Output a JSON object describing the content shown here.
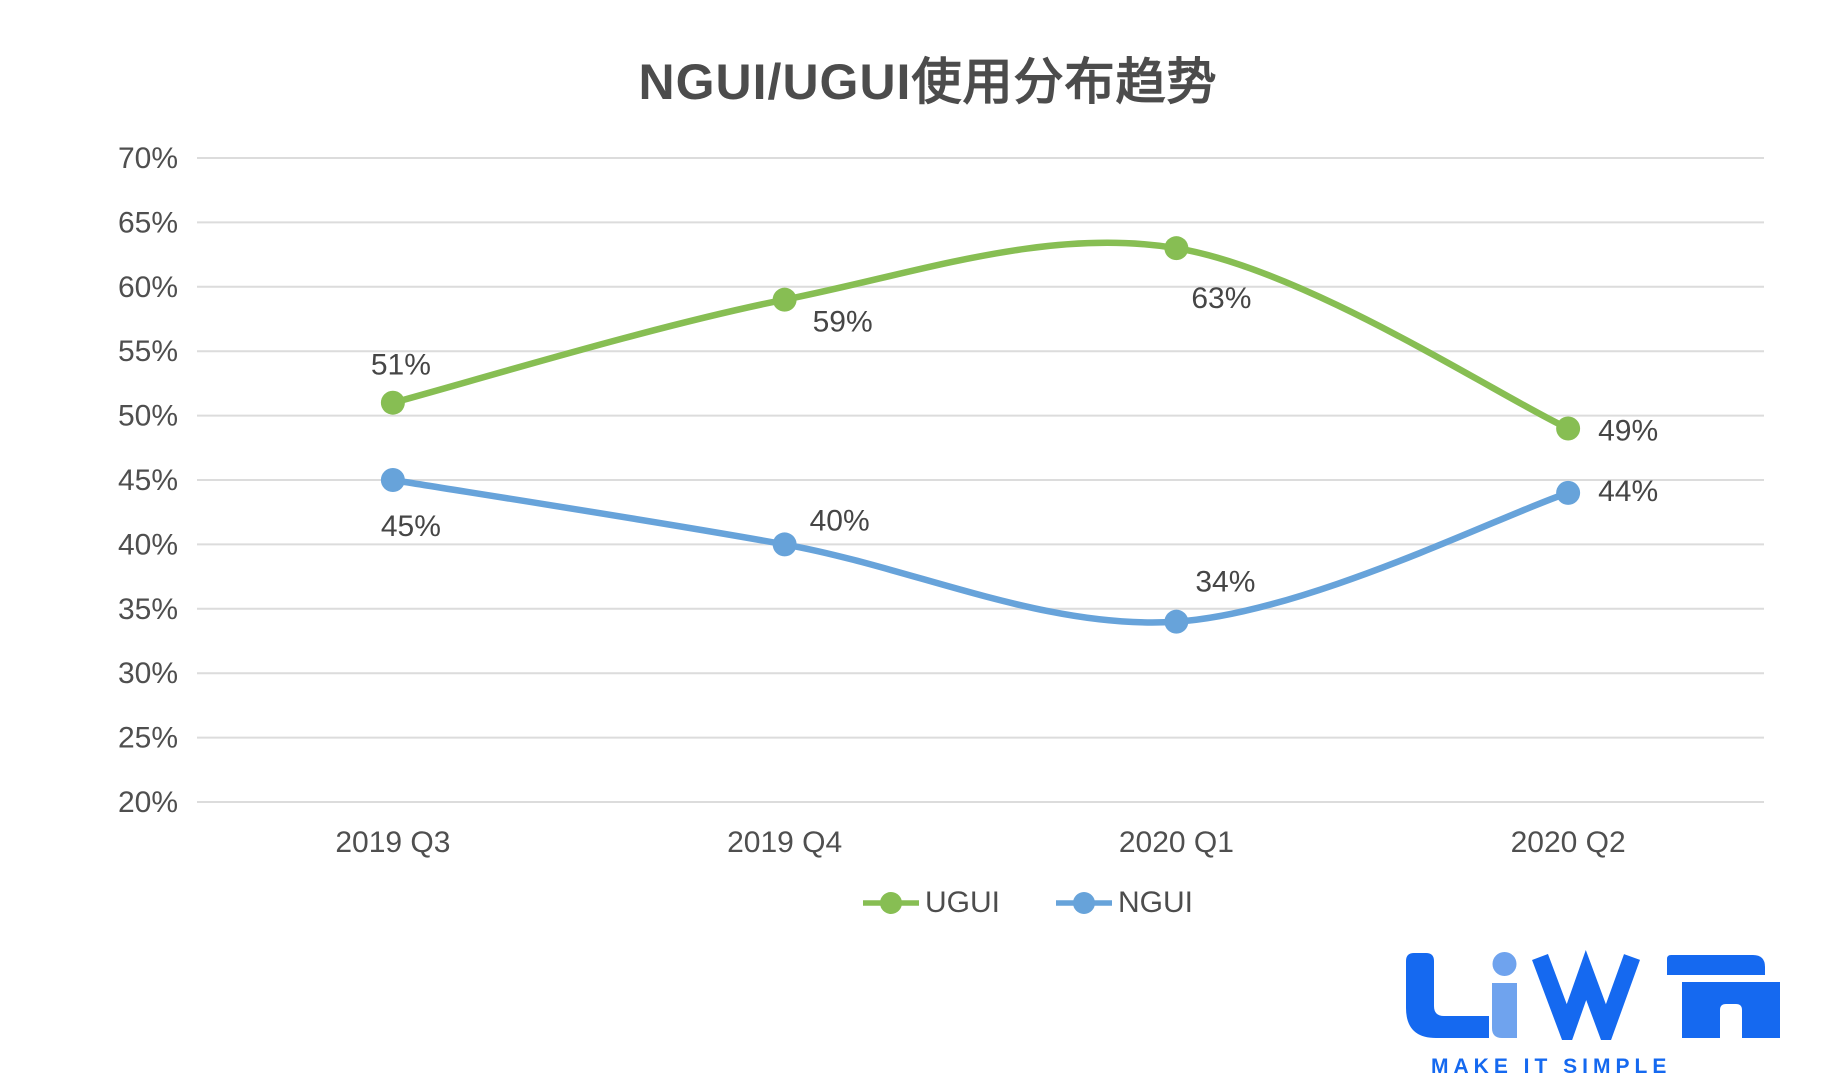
{
  "chart_data": {
    "type": "line",
    "title": "NGUI/UGUI使用分布趋势",
    "categories": [
      "2019 Q3",
      "2019 Q4",
      "2020 Q1",
      "2020 Q2"
    ],
    "series": [
      {
        "name": "UGUI",
        "values": [
          51,
          59,
          63,
          49
        ],
        "labels": [
          "51%",
          "59%",
          "63%",
          "49%"
        ],
        "color": "#87BE53"
      },
      {
        "name": "NGUI",
        "values": [
          45,
          40,
          34,
          44
        ],
        "labels": [
          "45%",
          "40%",
          "34%",
          "44%"
        ],
        "color": "#67A3DA"
      }
    ],
    "y_axis": {
      "min": 20,
      "max": 70,
      "step": 5,
      "ticks": [
        "20%",
        "25%",
        "30%",
        "35%",
        "40%",
        "45%",
        "50%",
        "55%",
        "60%",
        "65%",
        "70%"
      ]
    },
    "x_axis": {
      "label": ""
    },
    "grid": true,
    "smooth": true,
    "legend_position": "bottom",
    "gridline_color": "#dcdcdc",
    "label_offsets": [
      [
        [
          8,
          -38
        ],
        [
          58,
          22
        ],
        [
          45,
          50
        ],
        [
          60,
          2
        ]
      ],
      [
        [
          18,
          46
        ],
        [
          55,
          -24
        ],
        [
          49,
          -40
        ],
        [
          60,
          -2
        ]
      ]
    ]
  },
  "legend": {
    "items": [
      {
        "label": "UGUI",
        "color": "#87BE53"
      },
      {
        "label": "NGUI",
        "color": "#67A3DA"
      }
    ]
  },
  "logo": {
    "wordmark": "LiWA",
    "tagline": "MAKE IT SIMPLE",
    "primary_color": "#1569F0",
    "accent_color": "#6FA3EE"
  }
}
